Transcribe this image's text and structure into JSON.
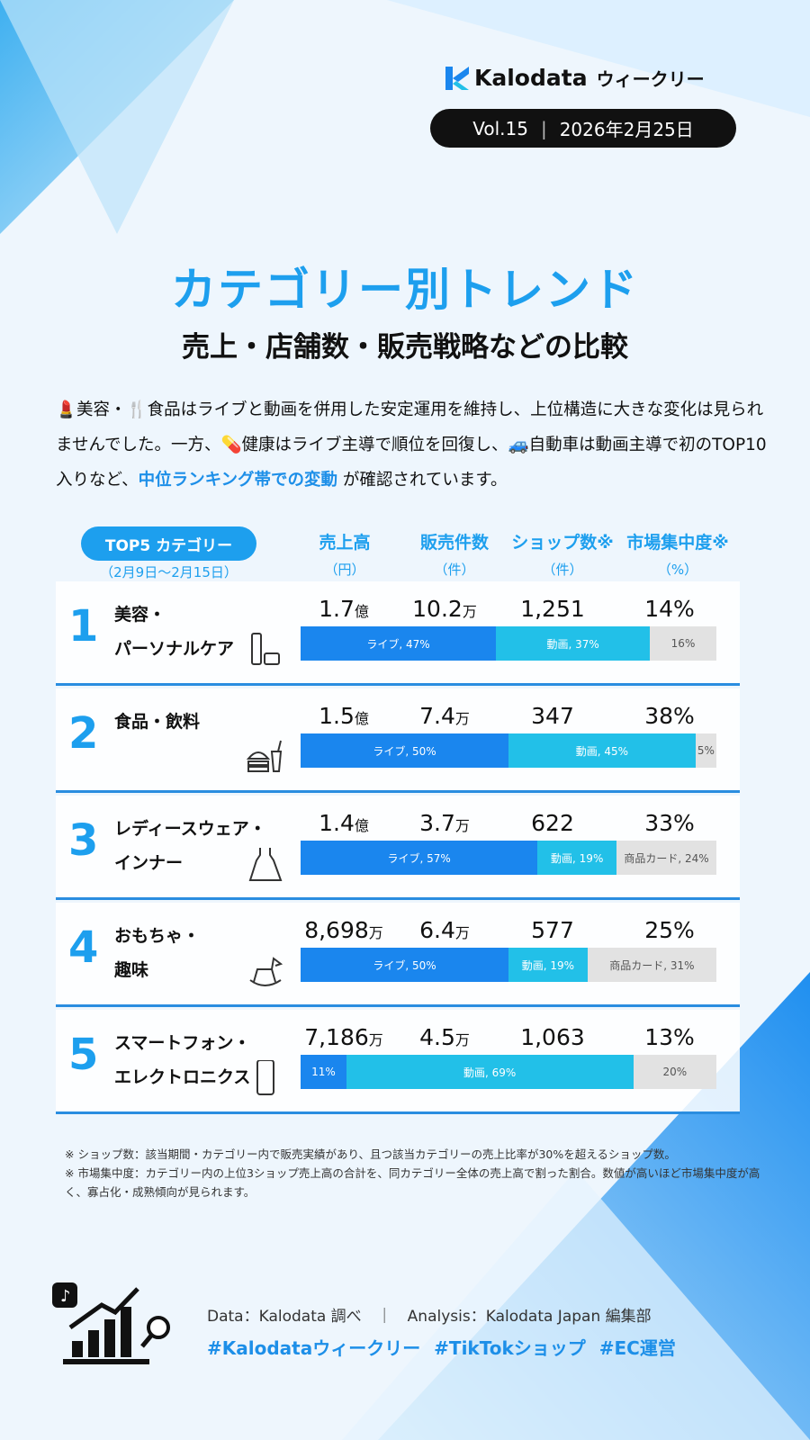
{
  "header": {
    "brand": "Kalodata",
    "brand_suffix": "ウィークリー",
    "volume": "Vol.15",
    "date": "2026年2月25日"
  },
  "title": "カテゴリー別トレンド",
  "subtitle": "売上・店舗数・販売戦略などの比較",
  "intro": {
    "part1": "💄美容・🍴食品はライブと動画を併用した安定運用を維持し、上位構造に大きな変化は見られませんでした。一方、💊健康はライブ主導で順位を回復し、🚙自動車は動画主導で初のTOP10入りなど、",
    "highlight": "中位ランキング帯での変動",
    "part2": " が確認されています。"
  },
  "table": {
    "badge": "TOP5 カテゴリー",
    "period": "（2月9日〜2月15日）",
    "columns": [
      {
        "label": "売上高",
        "unit": "（円）"
      },
      {
        "label": "販売件数",
        "unit": "（件）"
      },
      {
        "label": "ショップ数※",
        "unit": "（件）"
      },
      {
        "label": "市場集中度※",
        "unit": "（%）"
      }
    ],
    "rows": [
      {
        "rank": "1",
        "cat1": "美容・",
        "cat2": "パーソナルケア",
        "icon": "cosmetics-tube-icon",
        "sales": "1.7",
        "sales_unit": "億",
        "units": "10.2",
        "units_unit": "万",
        "shops": "1,251",
        "conc": "14%",
        "mix": [
          {
            "label": "ライブ, 47%",
            "pct": 47
          },
          {
            "label": "動画, 37%",
            "pct": 37
          },
          {
            "label": "16%",
            "pct": 16
          }
        ]
      },
      {
        "rank": "2",
        "cat1": "食品・飲料",
        "cat2": "",
        "icon": "burger-drink-icon",
        "sales": "1.5",
        "sales_unit": "億",
        "units": "7.4",
        "units_unit": "万",
        "shops": "347",
        "conc": "38%",
        "mix": [
          {
            "label": "ライブ, 50%",
            "pct": 50
          },
          {
            "label": "動画, 45%",
            "pct": 45
          },
          {
            "label": "5%",
            "pct": 5
          }
        ]
      },
      {
        "rank": "3",
        "cat1": "レディースウェア・",
        "cat2": "インナー",
        "icon": "dress-icon",
        "sales": "1.4",
        "sales_unit": "億",
        "units": "3.7",
        "units_unit": "万",
        "shops": "622",
        "conc": "33%",
        "mix": [
          {
            "label": "ライブ, 57%",
            "pct": 57
          },
          {
            "label": "動画, 19%",
            "pct": 19
          },
          {
            "label": "商品カード, 24%",
            "pct": 24
          }
        ]
      },
      {
        "rank": "4",
        "cat1": "おもちゃ・",
        "cat2": "趣味",
        "icon": "rocking-horse-icon",
        "sales": "8,698",
        "sales_unit": "万",
        "units": "6.4",
        "units_unit": "万",
        "shops": "577",
        "conc": "25%",
        "mix": [
          {
            "label": "ライブ, 50%",
            "pct": 50
          },
          {
            "label": "動画, 19%",
            "pct": 19
          },
          {
            "label": "商品カード, 31%",
            "pct": 31
          }
        ]
      },
      {
        "rank": "5",
        "cat1": "スマートフォン・",
        "cat2": "エレクトロニクス",
        "icon": "smartphone-icon",
        "sales": "7,186",
        "sales_unit": "万",
        "units": "4.5",
        "units_unit": "万",
        "shops": "1,063",
        "conc": "13%",
        "mix": [
          {
            "label": "11%",
            "pct": 11
          },
          {
            "label": "動画, 69%",
            "pct": 69
          },
          {
            "label": "20%",
            "pct": 20
          }
        ]
      }
    ]
  },
  "notes": [
    "※ ショップ数：該当期間・カテゴリー内で販売実績があり、且つ該当カテゴリーの売上比率が30%を超えるショップ数。",
    "※ 市場集中度：カテゴリー内の上位3ショップ売上高の合計を、同カテゴリー全体の売上高で割った割合。数値が高いほど市場集中度が高く、寡占化・成熟傾向が見られます。"
  ],
  "footer": {
    "credit": "Data：Kalodata 調べ　｜　Analysis：Kalodata Japan 編集部",
    "tags": "#Kalodataウィークリー #TikTokショップ #EC運営"
  },
  "colors": {
    "accent": "#1d9fee",
    "live": "#1a86ee",
    "video": "#22c0e8",
    "other": "#e2e2e2"
  }
}
